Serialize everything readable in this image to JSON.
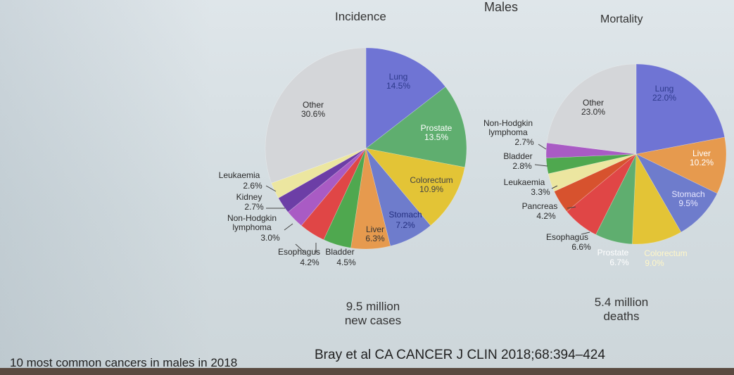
{
  "header": "Males",
  "footer_left": "10 most common cancers in males in 2018",
  "footer_ref": "Bray et al CA CANCER J CLIN 2018;68:394–424",
  "chart_data": [
    {
      "type": "pie",
      "title": "Incidence",
      "summary_line1": "9.5 million",
      "summary_line2": "new cases",
      "slices": [
        {
          "name": "Lung",
          "value": 14.5,
          "value_label": "14.5%",
          "color": "#6f74d4"
        },
        {
          "name": "Prostate",
          "value": 13.5,
          "value_label": "13.5%",
          "color": "#5fae6f"
        },
        {
          "name": "Colorectum",
          "value": 10.9,
          "value_label": "10.9%",
          "color": "#e3c436"
        },
        {
          "name": "Stomach",
          "value": 7.2,
          "value_label": "7.2%",
          "color": "#6e7ccc"
        },
        {
          "name": "Liver",
          "value": 6.3,
          "value_label": "6.3%",
          "color": "#e69a4e"
        },
        {
          "name": "Bladder",
          "value": 4.5,
          "value_label": "4.5%",
          "color": "#4fa84f"
        },
        {
          "name": "Esophagus",
          "value": 4.2,
          "value_label": "4.2%",
          "color": "#e04646"
        },
        {
          "name": "Non-Hodgkin lymphoma",
          "value": 3.0,
          "value_label": "3.0%",
          "color": "#a95bc4"
        },
        {
          "name": "Kidney",
          "value": 2.7,
          "value_label": "2.7%",
          "color": "#6c3ea6"
        },
        {
          "name": "Leukaemia",
          "value": 2.6,
          "value_label": "2.6%",
          "color": "#ece6a0"
        },
        {
          "name": "Other",
          "value": 30.6,
          "value_label": "30.6%",
          "color": "#d4d6d9"
        }
      ]
    },
    {
      "type": "pie",
      "title": "Mortality",
      "summary_line1": "5.4 million",
      "summary_line2": "deaths",
      "slices": [
        {
          "name": "Lung",
          "value": 22.0,
          "value_label": "22.0%",
          "color": "#6f74d4"
        },
        {
          "name": "Liver",
          "value": 10.2,
          "value_label": "10.2%",
          "color": "#e69a4e"
        },
        {
          "name": "Stomach",
          "value": 9.5,
          "value_label": "9.5%",
          "color": "#6e7ccc"
        },
        {
          "name": "Colorectum",
          "value": 9.0,
          "value_label": "9.0%",
          "color": "#e3c436"
        },
        {
          "name": "Prostate",
          "value": 6.7,
          "value_label": "6.7%",
          "color": "#5fae6f"
        },
        {
          "name": "Esophagus",
          "value": 6.6,
          "value_label": "6.6%",
          "color": "#e04646"
        },
        {
          "name": "Pancreas",
          "value": 4.2,
          "value_label": "4.2%",
          "color": "#d7522e"
        },
        {
          "name": "Leukaemia",
          "value": 3.3,
          "value_label": "3.3%",
          "color": "#ece6a0"
        },
        {
          "name": "Bladder",
          "value": 2.8,
          "value_label": "2.8%",
          "color": "#4fa84f"
        },
        {
          "name": "Non-Hodgkin lymphoma",
          "value": 2.7,
          "value_label": "2.7%",
          "color": "#a95bc4"
        },
        {
          "name": "Other",
          "value": 23.0,
          "value_label": "23.0%",
          "color": "#d4d6d9"
        }
      ]
    }
  ]
}
